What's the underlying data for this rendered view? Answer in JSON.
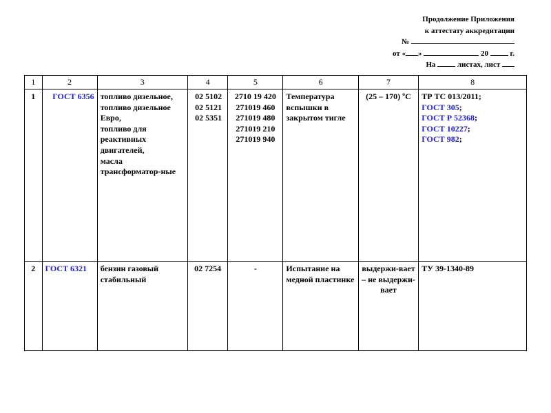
{
  "header": {
    "line1": "Продолжение Приложения",
    "line2": "к аттестату аккредитации",
    "line3_prefix": "№",
    "line4_prefix": "от «",
    "line4_mid1": "»",
    "line4_mid2": "20",
    "line4_suffix": "г.",
    "line5_prefix": "На",
    "line5_mid": "листах, лист"
  },
  "colors": {
    "link": "#2020cc",
    "text": "#000000",
    "border": "#000000",
    "bg": "#ffffff"
  },
  "columns": [
    "1",
    "2",
    "3",
    "4",
    "5",
    "6",
    "7",
    "8"
  ],
  "col_widths_pct": [
    3.5,
    11,
    18,
    8,
    11,
    15,
    12,
    21.5
  ],
  "rows": [
    {
      "n": "1",
      "col2_link": "ГОСТ 6356",
      "col3": "топливо дизельное,\n топливо дизельное Евро,\n топливо для реактивных двигателей,\n масла трансформатор-ные",
      "col4": "02 5102\n02 5121\n02 5351",
      "col5": "2710 19 420\n271019 460\n271019 480\n271019 210\n271019 940",
      "col6": "Температура вспышки в закрытом тигле",
      "col7": "(25 – 170) ºС",
      "col8_plain_pre": "ТР ТС 013/2011;",
      "col8_links": [
        "ГОСТ 305",
        "ГОСТ Р 52368",
        "ГОСТ 10227",
        "ГОСТ 982"
      ]
    },
    {
      "n": "2",
      "col2_link": "ГОСТ 6321",
      "col3": "бензин газовый стабильный",
      "col4": "02 7254",
      "col5": "-",
      "col6": "Испытание на медной пластинке",
      "col7": "выдержи-вает – не выдержи-вает",
      "col8_plain_pre": "ТУ 39-1340-89",
      "col8_links": []
    }
  ]
}
